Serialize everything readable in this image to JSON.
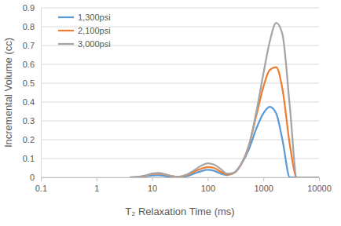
{
  "chart_data": {
    "type": "line",
    "x_label": "T₂ Relaxation Time (ms)",
    "y_label": "Incremental Volume (cc)",
    "x": [
      4,
      6,
      8,
      10,
      13,
      17,
      22,
      30,
      40,
      55,
      75,
      100,
      130,
      170,
      220,
      300,
      400,
      550,
      750,
      1000,
      1300,
      1700,
      2200,
      3000,
      4000,
      5000,
      10000
    ],
    "series": [
      {
        "name": "1,300psi",
        "color": "#5B9BD5",
        "values": [
          0,
          0.003,
          0.007,
          0.01,
          0.011,
          0.007,
          0.002,
          0,
          0.005,
          0.018,
          0.032,
          0.04,
          0.035,
          0.02,
          0.012,
          0.025,
          0.07,
          0.15,
          0.26,
          0.34,
          0.375,
          0.34,
          0.2,
          0,
          0,
          0,
          0
        ]
      },
      {
        "name": "2,100psi",
        "color": "#ED7D31",
        "values": [
          0,
          0.003,
          0.01,
          0.018,
          0.02,
          0.015,
          0.007,
          0.003,
          0.01,
          0.028,
          0.045,
          0.055,
          0.05,
          0.03,
          0.015,
          0.025,
          0.07,
          0.17,
          0.33,
          0.48,
          0.57,
          0.585,
          0.47,
          0.17,
          0,
          0,
          0
        ]
      },
      {
        "name": "3,000psi",
        "color": "#A5A5A5",
        "values": [
          0,
          0.004,
          0.011,
          0.02,
          0.023,
          0.017,
          0.008,
          0.003,
          0.012,
          0.035,
          0.06,
          0.075,
          0.068,
          0.045,
          0.02,
          0.025,
          0.07,
          0.17,
          0.35,
          0.55,
          0.72,
          0.82,
          0.76,
          0.37,
          0,
          0,
          0
        ]
      }
    ],
    "xlim": [
      0.1,
      10000
    ],
    "xticks": [
      0.1,
      1,
      10,
      100,
      1000,
      10000
    ],
    "ylim": [
      0,
      0.9
    ],
    "yticks": [
      0,
      0.1,
      0.2,
      0.3,
      0.4,
      0.5,
      0.6,
      0.7,
      0.8,
      0.9
    ],
    "log": "x",
    "grid": true,
    "legend": "upper left"
  }
}
